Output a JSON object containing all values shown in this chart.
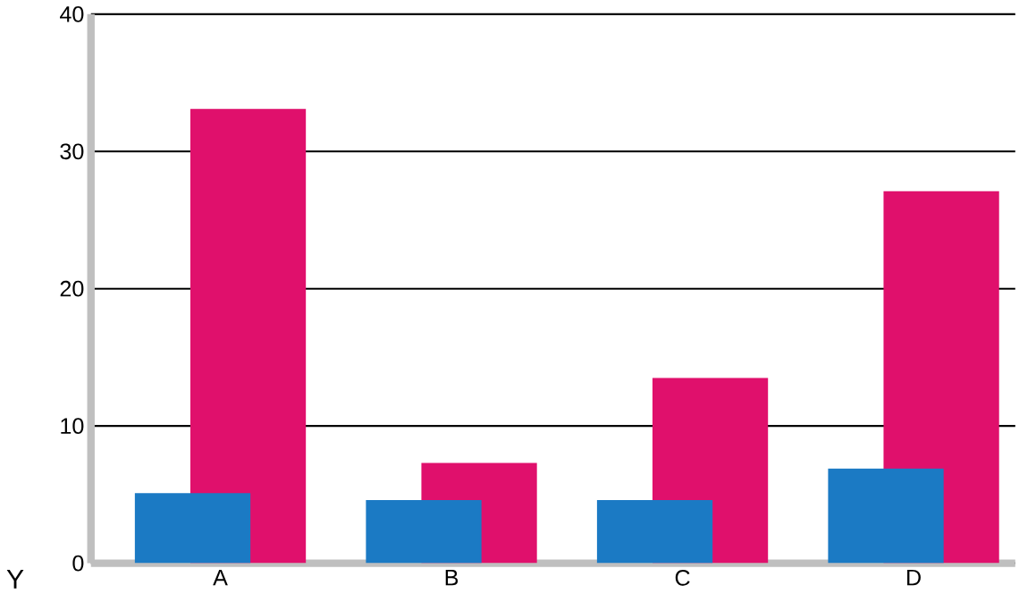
{
  "chart_data": {
    "type": "bar",
    "ylabel": "Y",
    "categories": [
      "A",
      "B",
      "C",
      "D"
    ],
    "series": [
      {
        "color": "#1b7ac4",
        "values": [
          5.1,
          4.6,
          4.6,
          6.9
        ]
      },
      {
        "color": "#e0106c",
        "values": [
          33.1,
          7.3,
          13.5,
          27.1
        ]
      }
    ],
    "ylim": [
      0,
      40
    ],
    "yticks": [
      0,
      10,
      20,
      30,
      40
    ],
    "grid": "y"
  }
}
